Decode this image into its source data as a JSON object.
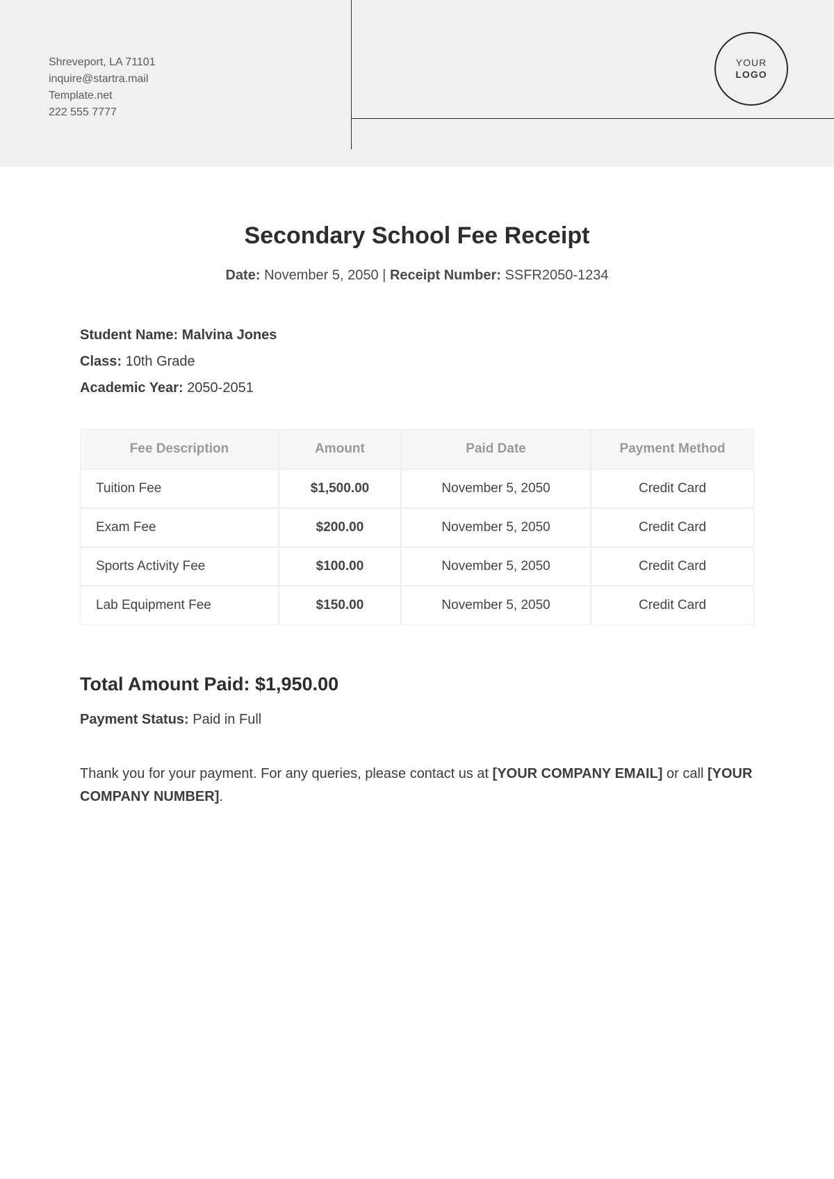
{
  "header": {
    "address": "Shreveport, LA 71101",
    "email": "inquire@startra.mail",
    "site": "Template.net",
    "phone": "222 555 7777",
    "logo_line1": "YOUR",
    "logo_line2": "LOGO"
  },
  "colors": {
    "header_bg": "#f2efef",
    "divider": "#2a2a2a",
    "table_header_bg": "#f5f6f8",
    "table_header_text": "#999999",
    "table_border": "#eeeeee",
    "title_text": "#2d2d2d",
    "body_text": "#3d3d3d"
  },
  "receipt": {
    "title": "Secondary School Fee Receipt",
    "date_label": "Date:",
    "date": "November 5, 2050",
    "number_label": "Receipt Number:",
    "number": "SSFR2050-1234"
  },
  "student": {
    "name_label": "Student Name:",
    "name": "Malvina Jones",
    "class_label": "Class:",
    "class": "10th Grade",
    "year_label": "Academic Year:",
    "year": "2050-2051"
  },
  "table": {
    "columns": [
      "Fee Description",
      "Amount",
      "Paid Date",
      "Payment Method"
    ],
    "rows": [
      {
        "desc": "Tuition Fee",
        "amount": "$1,500.00",
        "date": "November 5, 2050",
        "method": "Credit Card"
      },
      {
        "desc": "Exam Fee",
        "amount": "$200.00",
        "date": "November 5, 2050",
        "method": "Credit Card"
      },
      {
        "desc": "Sports Activity Fee",
        "amount": "$100.00",
        "date": "November 5, 2050",
        "method": "Credit Card"
      },
      {
        "desc": "Lab Equipment Fee",
        "amount": "$150.00",
        "date": "November 5, 2050",
        "method": "Credit Card"
      }
    ]
  },
  "totals": {
    "label": "Total Amount Paid:",
    "value": "$1,950.00",
    "status_label": "Payment Status:",
    "status": "Paid in Full"
  },
  "footer": {
    "text_before": "Thank you for your payment. For any queries, please contact us at ",
    "email_ph": "[YOUR COMPANY EMAIL]",
    "text_mid": " or call ",
    "phone_ph": "[YOUR COMPANY NUMBER]",
    "text_after": "."
  }
}
